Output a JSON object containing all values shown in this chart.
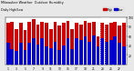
{
  "title": "Milwaukee Weather  Outdoor Humidity",
  "subtitle": "Daily High/Low",
  "high_values": [
    88,
    90,
    75,
    88,
    72,
    90,
    95,
    85,
    90,
    88,
    75,
    90,
    82,
    88,
    92,
    75,
    88,
    85,
    92,
    88,
    90,
    60,
    88,
    85,
    88,
    90,
    82,
    88
  ],
  "low_values": [
    45,
    32,
    28,
    45,
    30,
    45,
    55,
    42,
    55,
    38,
    35,
    48,
    30,
    40,
    55,
    32,
    55,
    52,
    60,
    48,
    62,
    38,
    55,
    48,
    52,
    60,
    45,
    38
  ],
  "x_labels": [
    "1",
    "2",
    "3",
    "4",
    "5",
    "6",
    "7",
    "8",
    "9",
    "10",
    "11",
    "12",
    "13",
    "14",
    "15",
    "16",
    "17",
    "18",
    "19",
    "20",
    "21",
    "22",
    "23",
    "24",
    "25",
    "26",
    "27",
    "28"
  ],
  "high_color": "#cc0000",
  "low_color": "#0000cc",
  "bg_color": "#e8e8e8",
  "plot_bg": "#ffffff",
  "ylim": [
    0,
    100
  ],
  "yticks": [
    20,
    40,
    60,
    80,
    100
  ],
  "legend_high": "High",
  "legend_low": "Low",
  "bar_width": 0.8,
  "dotted_bar": 22
}
